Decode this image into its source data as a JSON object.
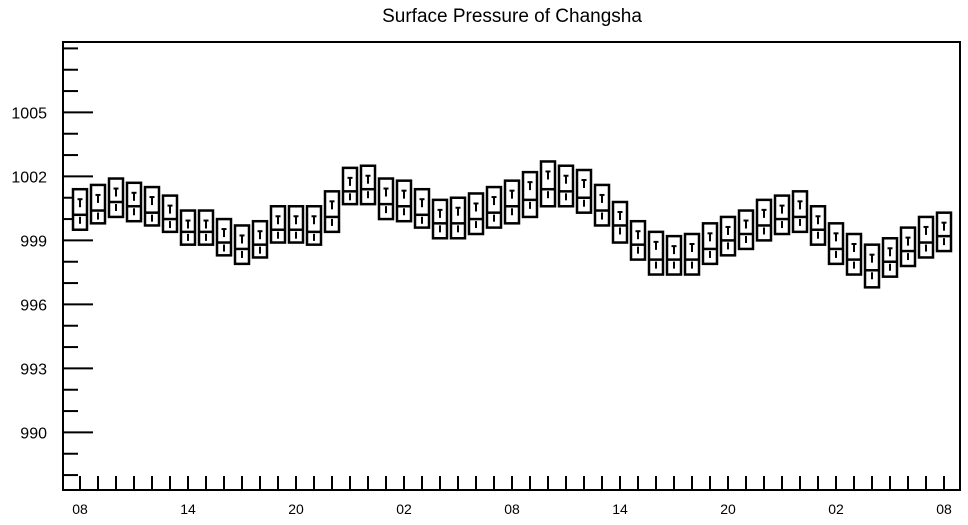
{
  "chart_data": {
    "type": "boxplot",
    "title": "Surface Pressure of Changsha",
    "xlabel": "",
    "ylabel": "",
    "ylim": [
      987.3,
      1008.3
    ],
    "y_major_ticks": [
      990,
      993,
      996,
      999,
      1002,
      1005
    ],
    "x_tick_labels": [
      "08",
      "14",
      "20",
      "02",
      "08",
      "14",
      "20",
      "02",
      "08"
    ],
    "x_tick_label_positions": [
      0,
      6,
      12,
      18,
      24,
      30,
      36,
      42,
      48
    ],
    "x_minor_tick_count": 49,
    "grid": false,
    "legend": "none",
    "colors": {
      "line": "#000000",
      "background": "#ffffff"
    },
    "boxes": [
      {
        "x": 0,
        "min": 999.5,
        "q1": 999.5,
        "median": 1000.2,
        "q3": 1001.4,
        "max": 1001.4
      },
      {
        "x": 1,
        "min": 999.8,
        "q1": 999.8,
        "median": 1000.4,
        "q3": 1001.6,
        "max": 1001.6
      },
      {
        "x": 2,
        "min": 1000.1,
        "q1": 1000.1,
        "median": 1000.8,
        "q3": 1001.9,
        "max": 1001.9
      },
      {
        "x": 3,
        "min": 999.9,
        "q1": 999.9,
        "median": 1000.6,
        "q3": 1001.7,
        "max": 1001.7
      },
      {
        "x": 4,
        "min": 999.7,
        "q1": 999.7,
        "median": 1000.3,
        "q3": 1001.5,
        "max": 1001.5
      },
      {
        "x": 5,
        "min": 999.4,
        "q1": 999.4,
        "median": 1000.0,
        "q3": 1001.1,
        "max": 1001.1
      },
      {
        "x": 6,
        "min": 998.8,
        "q1": 998.8,
        "median": 999.4,
        "q3": 1000.4,
        "max": 1000.4
      },
      {
        "x": 7,
        "min": 998.8,
        "q1": 998.8,
        "median": 999.4,
        "q3": 1000.4,
        "max": 1000.4
      },
      {
        "x": 8,
        "min": 998.3,
        "q1": 998.3,
        "median": 998.9,
        "q3": 1000.0,
        "max": 1000.0
      },
      {
        "x": 9,
        "min": 997.9,
        "q1": 997.9,
        "median": 998.6,
        "q3": 999.7,
        "max": 999.7
      },
      {
        "x": 10,
        "min": 998.2,
        "q1": 998.2,
        "median": 998.8,
        "q3": 999.9,
        "max": 999.9
      },
      {
        "x": 11,
        "min": 998.9,
        "q1": 998.9,
        "median": 999.5,
        "q3": 1000.6,
        "max": 1000.6
      },
      {
        "x": 12,
        "min": 998.9,
        "q1": 998.9,
        "median": 999.5,
        "q3": 1000.6,
        "max": 1000.6
      },
      {
        "x": 13,
        "min": 998.8,
        "q1": 998.8,
        "median": 999.4,
        "q3": 1000.6,
        "max": 1000.6
      },
      {
        "x": 14,
        "min": 999.4,
        "q1": 999.4,
        "median": 1000.1,
        "q3": 1001.3,
        "max": 1001.3
      },
      {
        "x": 15,
        "min": 1000.7,
        "q1": 1000.7,
        "median": 1001.3,
        "q3": 1002.4,
        "max": 1002.4
      },
      {
        "x": 16,
        "min": 1000.7,
        "q1": 1000.7,
        "median": 1001.4,
        "q3": 1002.5,
        "max": 1002.5
      },
      {
        "x": 17,
        "min": 1000.0,
        "q1": 1000.0,
        "median": 1000.7,
        "q3": 1001.9,
        "max": 1001.9
      },
      {
        "x": 18,
        "min": 999.9,
        "q1": 999.9,
        "median": 1000.6,
        "q3": 1001.8,
        "max": 1001.8
      },
      {
        "x": 19,
        "min": 999.6,
        "q1": 999.6,
        "median": 1000.2,
        "q3": 1001.4,
        "max": 1001.4
      },
      {
        "x": 20,
        "min": 999.1,
        "q1": 999.1,
        "median": 999.8,
        "q3": 1000.9,
        "max": 1000.9
      },
      {
        "x": 21,
        "min": 999.1,
        "q1": 999.1,
        "median": 999.8,
        "q3": 1001.0,
        "max": 1001.0
      },
      {
        "x": 22,
        "min": 999.3,
        "q1": 999.3,
        "median": 1000.0,
        "q3": 1001.2,
        "max": 1001.2
      },
      {
        "x": 23,
        "min": 999.6,
        "q1": 999.6,
        "median": 1000.3,
        "q3": 1001.5,
        "max": 1001.5
      },
      {
        "x": 24,
        "min": 999.8,
        "q1": 999.8,
        "median": 1000.6,
        "q3": 1001.8,
        "max": 1001.8
      },
      {
        "x": 25,
        "min": 1000.1,
        "q1": 1000.1,
        "median": 1000.9,
        "q3": 1002.2,
        "max": 1002.2
      },
      {
        "x": 26,
        "min": 1000.6,
        "q1": 1000.6,
        "median": 1001.4,
        "q3": 1002.7,
        "max": 1002.7
      },
      {
        "x": 27,
        "min": 1000.6,
        "q1": 1000.6,
        "median": 1001.3,
        "q3": 1002.5,
        "max": 1002.5
      },
      {
        "x": 28,
        "min": 1000.3,
        "q1": 1000.3,
        "median": 1001.0,
        "q3": 1002.3,
        "max": 1002.3
      },
      {
        "x": 29,
        "min": 999.7,
        "q1": 999.7,
        "median": 1000.4,
        "q3": 1001.6,
        "max": 1001.6
      },
      {
        "x": 30,
        "min": 998.9,
        "q1": 998.9,
        "median": 999.7,
        "q3": 1000.8,
        "max": 1000.8
      },
      {
        "x": 31,
        "min": 998.1,
        "q1": 998.1,
        "median": 998.8,
        "q3": 999.9,
        "max": 999.9
      },
      {
        "x": 32,
        "min": 997.4,
        "q1": 997.4,
        "median": 998.1,
        "q3": 999.4,
        "max": 999.4
      },
      {
        "x": 33,
        "min": 997.4,
        "q1": 997.4,
        "median": 998.1,
        "q3": 999.2,
        "max": 999.2
      },
      {
        "x": 34,
        "min": 997.4,
        "q1": 997.4,
        "median": 998.1,
        "q3": 999.3,
        "max": 999.3
      },
      {
        "x": 35,
        "min": 997.9,
        "q1": 997.9,
        "median": 998.6,
        "q3": 999.8,
        "max": 999.8
      },
      {
        "x": 36,
        "min": 998.3,
        "q1": 998.3,
        "median": 999.0,
        "q3": 1000.1,
        "max": 1000.1
      },
      {
        "x": 37,
        "min": 998.6,
        "q1": 998.6,
        "median": 999.3,
        "q3": 1000.4,
        "max": 1000.4
      },
      {
        "x": 38,
        "min": 999.0,
        "q1": 999.0,
        "median": 999.7,
        "q3": 1000.9,
        "max": 1000.9
      },
      {
        "x": 39,
        "min": 999.3,
        "q1": 999.3,
        "median": 1000.0,
        "q3": 1001.1,
        "max": 1001.1
      },
      {
        "x": 40,
        "min": 999.4,
        "q1": 999.4,
        "median": 1000.1,
        "q3": 1001.3,
        "max": 1001.3
      },
      {
        "x": 41,
        "min": 998.8,
        "q1": 998.8,
        "median": 999.5,
        "q3": 1000.6,
        "max": 1000.6
      },
      {
        "x": 42,
        "min": 997.9,
        "q1": 997.9,
        "median": 998.6,
        "q3": 999.8,
        "max": 999.8
      },
      {
        "x": 43,
        "min": 997.4,
        "q1": 997.4,
        "median": 998.1,
        "q3": 999.3,
        "max": 999.3
      },
      {
        "x": 44,
        "min": 996.8,
        "q1": 996.8,
        "median": 997.6,
        "q3": 998.8,
        "max": 998.8
      },
      {
        "x": 45,
        "min": 997.3,
        "q1": 997.3,
        "median": 998.0,
        "q3": 999.1,
        "max": 999.1
      },
      {
        "x": 46,
        "min": 997.8,
        "q1": 997.8,
        "median": 998.5,
        "q3": 999.6,
        "max": 999.6
      },
      {
        "x": 47,
        "min": 998.2,
        "q1": 998.2,
        "median": 998.9,
        "q3": 1000.1,
        "max": 1000.1
      },
      {
        "x": 48,
        "min": 998.5,
        "q1": 998.5,
        "median": 999.2,
        "q3": 1000.3,
        "max": 1000.3
      }
    ]
  }
}
